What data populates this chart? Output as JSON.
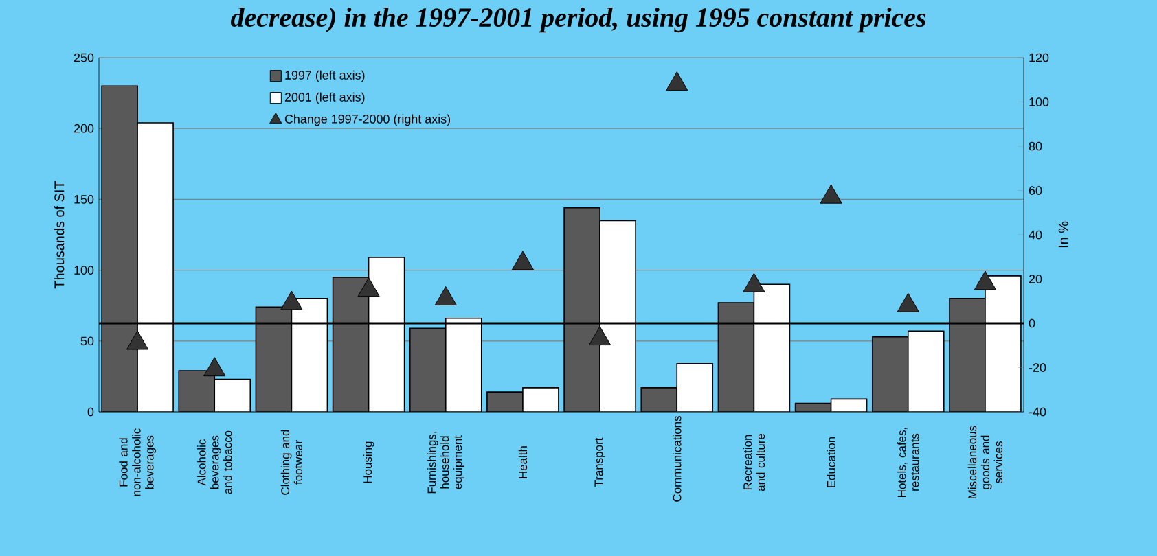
{
  "chart_data": {
    "type": "bar",
    "title": "decrease) in the 1997-2001 period, using 1995 constant prices",
    "categories": [
      "Food and non-alcoholic beverages",
      "Alcoholic beverages and tobacco",
      "Clothing and footwear",
      "Housing",
      "Furnishings, household equipment",
      "Health",
      "Transport",
      "Communications",
      "Recreation and culture",
      "Education",
      "Hotels, cafes, restaurants",
      "Miscellaneous goods and services"
    ],
    "ylabel": "Thousands of SIT",
    "y2label": "In %",
    "ylim": [
      0,
      250
    ],
    "yticks": [
      0,
      50,
      100,
      150,
      200,
      250
    ],
    "y2lim": [
      -40,
      120
    ],
    "y2ticks": [
      -40,
      -20,
      0,
      20,
      40,
      60,
      80,
      100,
      120
    ],
    "grid": "y",
    "legend": "top left",
    "series": [
      {
        "name": "1997 (left axis)",
        "color": "#595959",
        "values": [
          230,
          29,
          74,
          95,
          59,
          14,
          144,
          17,
          77,
          6,
          53,
          80
        ]
      },
      {
        "name": "2001 (left axis)",
        "color": "#ffffff",
        "values": [
          204,
          23,
          80,
          109,
          66,
          17,
          135,
          34,
          90,
          9,
          57,
          96
        ]
      },
      {
        "name": "Change 1997-2000 (right axis)",
        "type": "scatter",
        "axis": "y2",
        "color": "#333333",
        "marker": "triangle",
        "values": [
          -9,
          -21,
          9,
          15,
          11,
          27,
          -7,
          108,
          17,
          57,
          8,
          18
        ]
      }
    ],
    "ref_lines": [
      {
        "axis": "y2",
        "value": 0,
        "color": "#000000"
      }
    ]
  }
}
